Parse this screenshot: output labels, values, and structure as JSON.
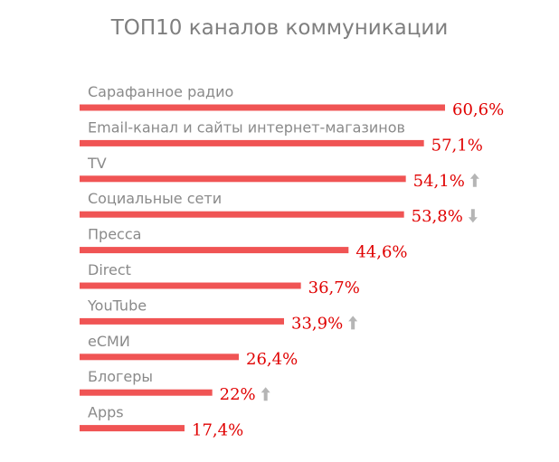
{
  "chart_data": {
    "type": "bar",
    "orientation": "horizontal",
    "title": "ТОП10 каналов коммуникации",
    "categories": [
      "Сарафанное радио",
      "Email-канал и сайты интернет-магазинов",
      "TV",
      "Социальные сети",
      "Пресса",
      "Direct",
      "YouTube",
      "еСМИ",
      "Блогеры",
      "Apps"
    ],
    "values": [
      60.6,
      57.1,
      54.1,
      53.8,
      44.6,
      36.7,
      33.9,
      26.4,
      22,
      17.4
    ],
    "value_labels": [
      "60,6%",
      "57,1%",
      "54,1%",
      "53,8%",
      "44,6%",
      "36,7%",
      "33,9%",
      "26,4%",
      "22%",
      "17,4%"
    ],
    "trends": [
      "",
      "",
      "up",
      "down",
      "",
      "",
      "up",
      "",
      "up",
      ""
    ],
    "unit": "%",
    "xlim": [
      0,
      60.6
    ],
    "grid": false,
    "legend": "none",
    "bar_color": "#f05454",
    "value_color": "#e00000",
    "label_color": "#8a8a8a",
    "arrow_color": "#b5b5b5"
  }
}
